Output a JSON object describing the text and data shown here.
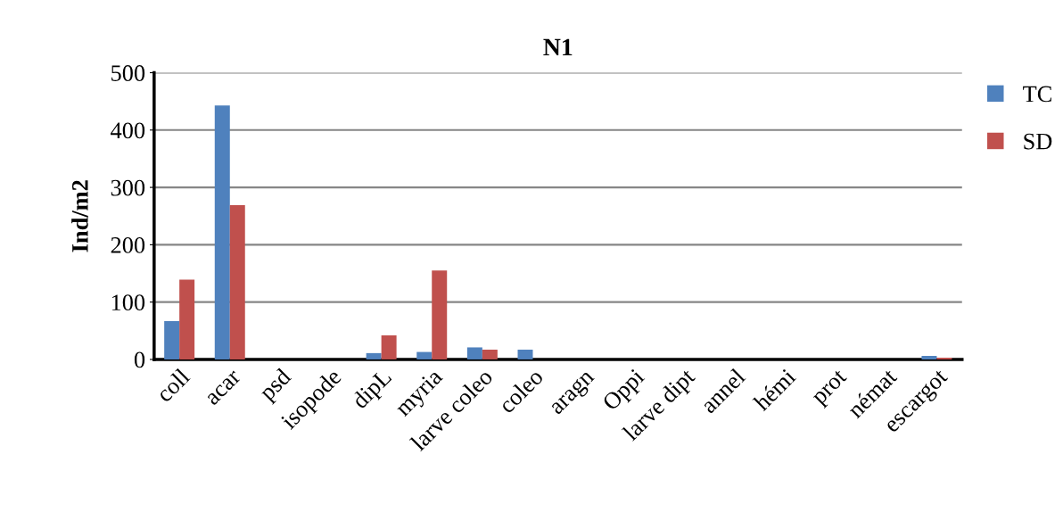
{
  "chart_data": {
    "type": "bar",
    "title": "N1",
    "ylabel": "Ind/m2",
    "categories": [
      "coll",
      "acar",
      "psd",
      "isopode",
      "dipL",
      "myria",
      "larve coleo",
      "coleo",
      "aragn",
      "Oppi",
      "larve dipt",
      "annel",
      "hémi",
      "prot",
      "némat",
      "escargot"
    ],
    "series": [
      {
        "name": "TC",
        "color": "#4f81bd",
        "values": [
          67,
          443,
          0,
          0,
          11,
          13,
          21,
          17,
          0,
          0,
          0,
          0,
          0,
          0,
          0,
          6
        ]
      },
      {
        "name": "SD",
        "color": "#c0504d",
        "values": [
          139,
          269,
          0,
          0,
          42,
          155,
          17,
          0,
          0,
          0,
          0,
          0,
          0,
          0,
          0,
          3
        ]
      }
    ],
    "ylim": [
      0,
      500
    ],
    "yticks": [
      0,
      100,
      200,
      300,
      400,
      500
    ],
    "grid": "y",
    "legend": "top right"
  }
}
